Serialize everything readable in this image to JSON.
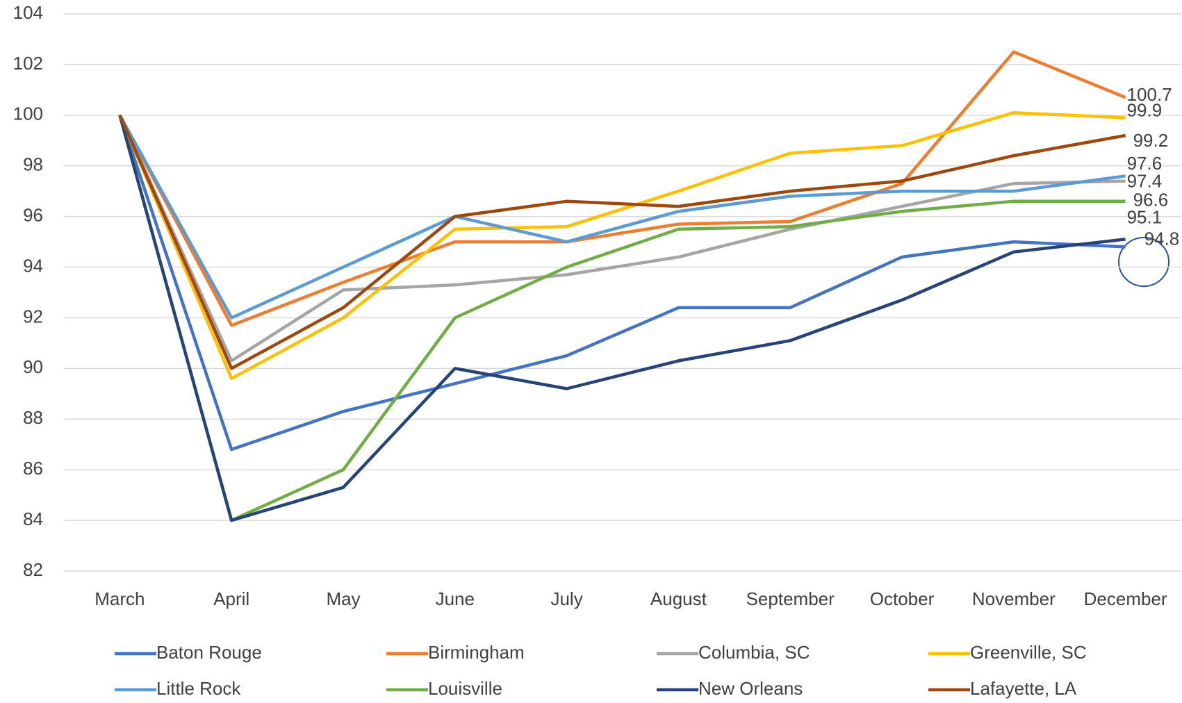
{
  "chart_data": {
    "type": "line",
    "categories": [
      "March",
      "April",
      "May",
      "June",
      "July",
      "August",
      "September",
      "October",
      "November",
      "December"
    ],
    "series": [
      {
        "name": "Baton Rouge",
        "color": "#4472c4",
        "values": [
          100,
          86.8,
          88.3,
          89.4,
          90.5,
          92.4,
          92.4,
          94.4,
          95.0,
          94.8
        ]
      },
      {
        "name": "Birmingham",
        "color": "#ed7d31",
        "values": [
          100,
          91.7,
          93.4,
          95.0,
          95.0,
          95.7,
          95.8,
          97.3,
          102.5,
          100.7
        ]
      },
      {
        "name": "Columbia, SC",
        "color": "#a5a5a5",
        "values": [
          100,
          90.3,
          93.1,
          93.3,
          93.7,
          94.4,
          95.5,
          96.4,
          97.3,
          97.4
        ]
      },
      {
        "name": "Greenville, SC",
        "color": "#ffc000",
        "values": [
          100,
          89.6,
          92.0,
          95.5,
          95.6,
          97.0,
          98.5,
          98.8,
          100.1,
          99.9
        ]
      },
      {
        "name": "Little Rock",
        "color": "#5b9bd5",
        "values": [
          100,
          92.0,
          94.0,
          96.0,
          95.0,
          96.2,
          96.8,
          97.0,
          97.0,
          97.6
        ]
      },
      {
        "name": "Louisville",
        "color": "#70ad47",
        "values": [
          100,
          84.0,
          86.0,
          92.0,
          94.0,
          95.5,
          95.6,
          96.2,
          96.6,
          96.6
        ]
      },
      {
        "name": "New Orleans",
        "color": "#264478",
        "values": [
          100,
          84.0,
          85.3,
          90.0,
          89.2,
          90.3,
          91.1,
          92.7,
          94.6,
          95.1
        ]
      },
      {
        "name": "Lafayette, LA",
        "color": "#9e480e",
        "values": [
          100,
          90.0,
          92.4,
          96.0,
          96.6,
          96.4,
          97.0,
          97.4,
          98.4,
          99.2
        ]
      }
    ],
    "ylim": [
      82,
      104
    ],
    "yticks": [
      82,
      84,
      86,
      88,
      90,
      92,
      94,
      96,
      98,
      100,
      102,
      104
    ],
    "grid": true,
    "legend": "bottom"
  }
}
